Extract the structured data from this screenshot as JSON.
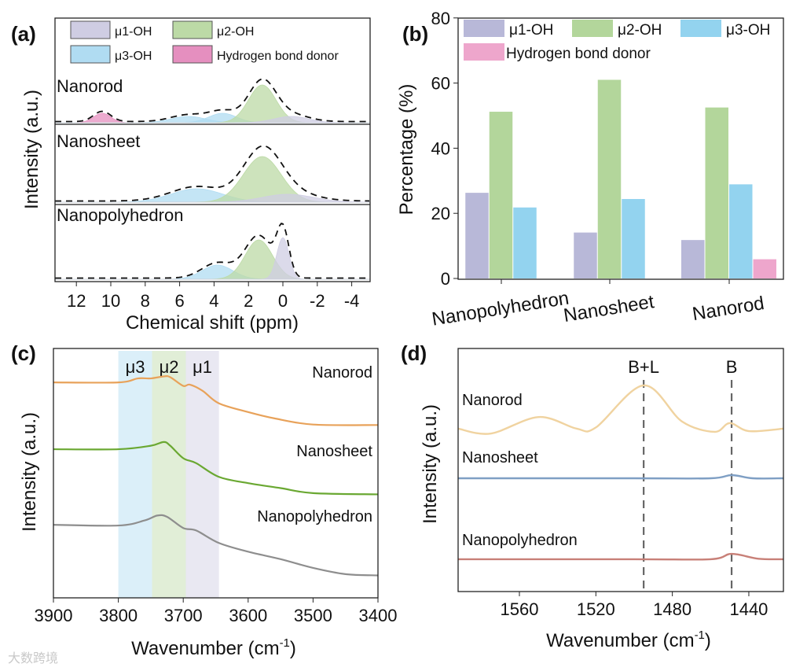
{
  "colors": {
    "mu1_fill": "#cfcde3",
    "mu2_fill": "#bcdaa6",
    "mu3_fill": "#b0dcf2",
    "hbd_fill": "#e58fbf",
    "mu1_bar": "#b8b8d8",
    "mu2_bar": "#b3d69b",
    "mu3_bar": "#93d3ef",
    "hbd_bar": "#eea6cc",
    "nanorod_c": "#e8a25a",
    "nanosheet_c": "#6aa832",
    "nanopoly_c": "#8e8e8e",
    "nanorod_d": "#f0d3a0",
    "nanosheet_d": "#7f9fc4",
    "nanopoly_d": "#c88078"
  },
  "watermark": "大数跨境",
  "chart_data": [
    {
      "panel": "(a)",
      "type": "area",
      "xlabel": "Chemical shift (ppm)",
      "ylabel": "Intensity (a.u.)",
      "xlim": [
        13.2,
        -5
      ],
      "xticks": [
        12,
        10,
        8,
        6,
        4,
        2,
        0,
        -2,
        -4
      ],
      "legend": [
        "μ1-OH",
        "μ2-OH",
        "μ3-OH",
        "Hydrogen bond donor"
      ],
      "samples": [
        {
          "name": "Nanorod",
          "peaks": [
            {
              "type": "hbd",
              "center": 10.5,
              "sigma": 0.5,
              "height": 0.12
            },
            {
              "type": "mu3",
              "center": 5.5,
              "sigma": 1.0,
              "height": 0.08
            },
            {
              "type": "mu3",
              "center": 3.5,
              "sigma": 0.8,
              "height": 0.12
            },
            {
              "type": "mu2",
              "center": 1.2,
              "sigma": 0.8,
              "height": 0.48
            },
            {
              "type": "mu1",
              "center": -0.5,
              "sigma": 1.0,
              "height": 0.08
            }
          ]
        },
        {
          "name": "Nanosheet",
          "peaks": [
            {
              "type": "mu3",
              "center": 5.0,
              "sigma": 1.5,
              "height": 0.17
            },
            {
              "type": "mu2",
              "center": 1.2,
              "sigma": 1.1,
              "height": 0.58
            },
            {
              "type": "mu1",
              "center": -0.3,
              "sigma": 1.5,
              "height": 0.1
            }
          ]
        },
        {
          "name": "Nanopolyhedron",
          "peaks": [
            {
              "type": "mu3",
              "center": 3.8,
              "sigma": 0.9,
              "height": 0.18
            },
            {
              "type": "mu2",
              "center": 1.4,
              "sigma": 0.8,
              "height": 0.5
            },
            {
              "type": "mu1",
              "center": 0.0,
              "sigma": 0.35,
              "height": 0.53
            }
          ]
        }
      ]
    },
    {
      "panel": "(b)",
      "type": "bar",
      "categories": [
        "Nanopolyhedron",
        "Nanosheet",
        "Nanorod"
      ],
      "series": [
        {
          "name": "μ1-OH",
          "key": "mu1",
          "values": [
            26.3,
            14.1,
            11.8
          ]
        },
        {
          "name": "μ2-OH",
          "key": "mu2",
          "values": [
            51.2,
            61.0,
            52.5
          ]
        },
        {
          "name": "μ3-OH",
          "key": "mu3",
          "values": [
            21.8,
            24.4,
            28.9
          ]
        },
        {
          "name": "Hydrogen bond donor",
          "key": "hbd",
          "values": [
            0,
            0,
            5.9
          ]
        }
      ],
      "ylabel": "Percentage (%)",
      "ylim": [
        0,
        80
      ],
      "yticks": [
        0,
        20,
        40,
        60,
        80
      ]
    },
    {
      "panel": "(c)",
      "type": "line",
      "xlabel": "Wavenumber (cm",
      "xlabel_sup": "-1",
      "xlabel_end": ")",
      "ylabel": "Intensity (a.u.)",
      "xlim": [
        3900,
        3400
      ],
      "xticks": [
        3900,
        3800,
        3700,
        3600,
        3500,
        3400
      ],
      "bands": [
        {
          "label": "μ3",
          "from": 3800,
          "to": 3748,
          "key": "mu3"
        },
        {
          "label": "μ2",
          "from": 3748,
          "to": 3696,
          "key": "mu2"
        },
        {
          "label": "μ1",
          "from": 3696,
          "to": 3645,
          "key": "mu1"
        }
      ],
      "series": [
        {
          "name": "Nanorod",
          "color": "nanorod_c",
          "points": [
            [
              3900,
              86.4
            ],
            [
              3800,
              86.4
            ],
            [
              3770,
              88
            ],
            [
              3750,
              88
            ],
            [
              3730,
              88.8
            ],
            [
              3720,
              88.5
            ],
            [
              3700,
              85
            ],
            [
              3690,
              85.5
            ],
            [
              3670,
              83
            ],
            [
              3645,
              78
            ],
            [
              3600,
              74.5
            ],
            [
              3560,
              72
            ],
            [
              3500,
              69.5
            ],
            [
              3400,
              69.3
            ]
          ]
        },
        {
          "name": "Nanosheet",
          "color": "nanosheet_c",
          "points": [
            [
              3900,
              59.6
            ],
            [
              3800,
              59.6
            ],
            [
              3750,
              61
            ],
            [
              3730,
              62.5
            ],
            [
              3720,
              61
            ],
            [
              3700,
              56
            ],
            [
              3680,
              54
            ],
            [
              3645,
              48.5
            ],
            [
              3600,
              46
            ],
            [
              3550,
              44
            ],
            [
              3500,
              42
            ],
            [
              3400,
              41.5
            ]
          ]
        },
        {
          "name": "Nanopolyhedron",
          "color": "nanopoly_c",
          "points": [
            [
              3900,
              29.3
            ],
            [
              3800,
              29
            ],
            [
              3760,
              31
            ],
            [
              3740,
              33
            ],
            [
              3725,
              32.5
            ],
            [
              3700,
              28
            ],
            [
              3680,
              27
            ],
            [
              3645,
              22
            ],
            [
              3600,
              18.5
            ],
            [
              3550,
              15.5
            ],
            [
              3500,
              12
            ],
            [
              3450,
              9.5
            ],
            [
              3400,
              9
            ]
          ]
        }
      ]
    },
    {
      "panel": "(d)",
      "type": "line",
      "xlabel": "Wavenumber (cm",
      "xlabel_sup": "-1",
      "xlabel_end": ")",
      "ylabel": "Intensity (a.u.)",
      "xlim": [
        1592,
        1422
      ],
      "xticks": [
        1560,
        1520,
        1480,
        1440
      ],
      "markers": [
        {
          "label": "B+L",
          "x": 1495
        },
        {
          "label": "B",
          "x": 1449
        }
      ],
      "series": [
        {
          "name": "Nanorod",
          "color": "nanorod_d",
          "points": [
            [
              1592,
              67
            ],
            [
              1575,
              65
            ],
            [
              1550,
              71.8
            ],
            [
              1530,
              67
            ],
            [
              1520,
              67.5
            ],
            [
              1495,
              84.8
            ],
            [
              1475,
              70
            ],
            [
              1458,
              65.7
            ],
            [
              1450,
              69.3
            ],
            [
              1440,
              66
            ],
            [
              1422,
              67
            ]
          ]
        },
        {
          "name": "Nanosheet",
          "color": "nanosheet_d",
          "points": [
            [
              1592,
              46.6
            ],
            [
              1500,
              46.6
            ],
            [
              1460,
              46.6
            ],
            [
              1449,
              47.9
            ],
            [
              1438,
              46.6
            ],
            [
              1422,
              46.6
            ]
          ]
        },
        {
          "name": "Nanopolyhedron",
          "color": "nanopoly_d",
          "points": [
            [
              1592,
              13.3
            ],
            [
              1500,
              13.3
            ],
            [
              1460,
              13.3
            ],
            [
              1449,
              15.5
            ],
            [
              1435,
              13.5
            ],
            [
              1422,
              13.3
            ]
          ]
        }
      ]
    }
  ]
}
